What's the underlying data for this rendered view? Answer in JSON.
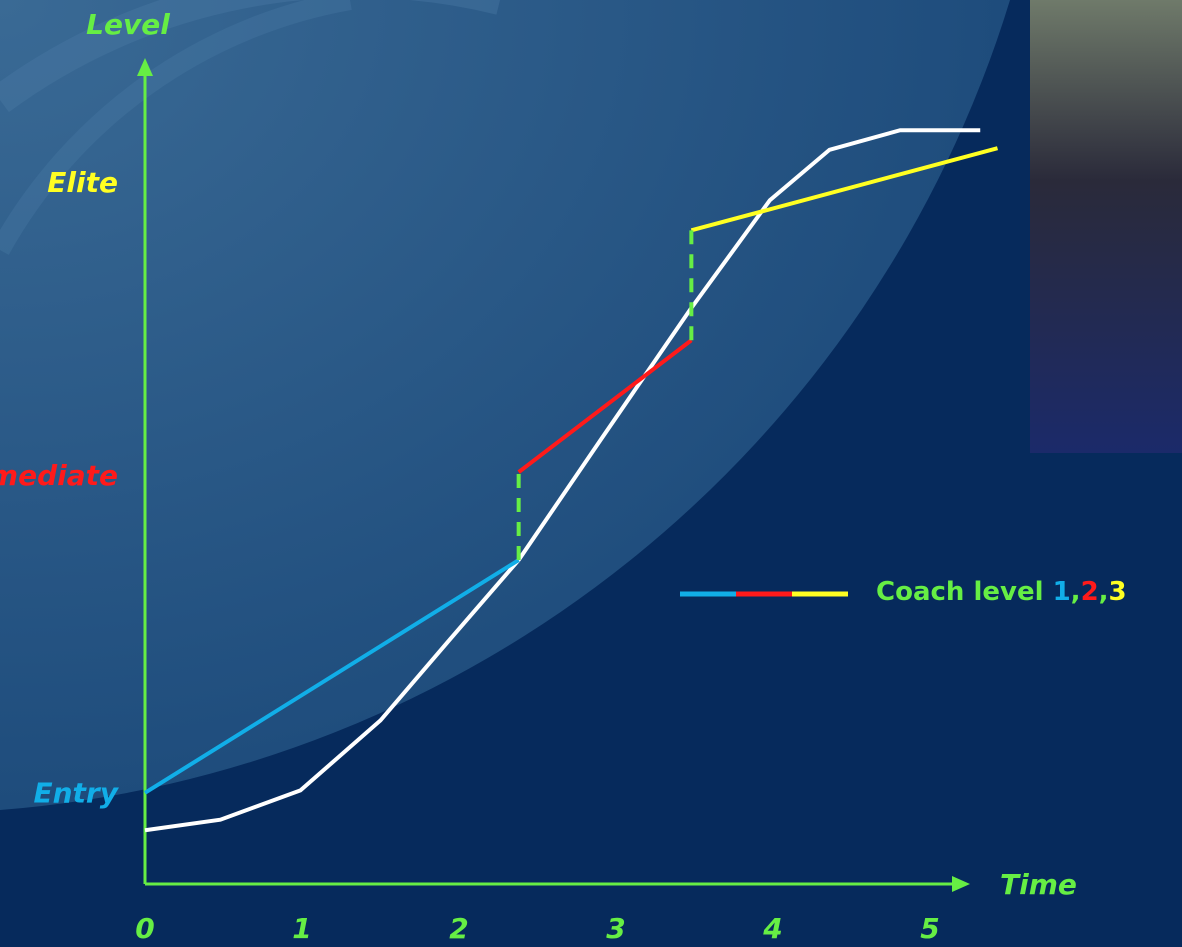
{
  "chart_data": {
    "type": "line",
    "x_label": "Time",
    "y_label": "Level",
    "xlim": [
      0,
      5
    ],
    "xticks": [
      0,
      1,
      2,
      3,
      4,
      5
    ],
    "ylim": [
      0,
      100
    ],
    "yticks": [
      {
        "value": 11,
        "label": "Entry",
        "color": "#11aee8"
      },
      {
        "value": 50,
        "label": "Intermediate",
        "color": "#ff1a1a"
      },
      {
        "value": 86,
        "label": "Elite",
        "color": "#ffff22"
      }
    ],
    "axis_color": "#66ee44",
    "series": [
      {
        "color": "#ffffff",
        "x": [
          0,
          0.48,
          0.99,
          1.5,
          1.94,
          2.38,
          2.9,
          3.47,
          3.98,
          4.36,
          4.81,
          5.32
        ],
        "y": [
          6.6,
          7.9,
          11.5,
          20.1,
          30.0,
          39.8,
          54.5,
          70.5,
          84.0,
          90.2,
          92.6,
          92.6
        ]
      },
      {
        "name": "1",
        "color": "#11aee8",
        "x": [
          0,
          2.38
        ],
        "y": [
          11.2,
          39.8
        ]
      },
      {
        "name": "2",
        "color": "#ff1a1a",
        "x": [
          2.38,
          3.48
        ],
        "y": [
          50.6,
          66.8
        ]
      },
      {
        "name": "3",
        "color": "#ffff22",
        "x": [
          3.48,
          5.43
        ],
        "y": [
          80.3,
          90.4
        ]
      }
    ],
    "connectors": [
      {
        "x": 2.38,
        "y": [
          39.8,
          50.6
        ]
      },
      {
        "x": 3.48,
        "y": [
          66.8,
          80.3
        ]
      }
    ],
    "legend": {
      "label": "Coach level",
      "separator": ","
    }
  }
}
